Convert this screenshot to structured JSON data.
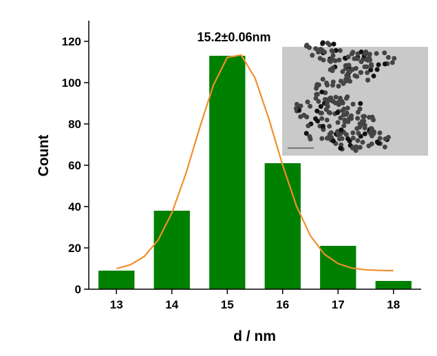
{
  "chart_data": {
    "type": "bar",
    "annotation": "15.2±0.06nm",
    "xlabel": "d / nm",
    "ylabel": "Count",
    "bars": {
      "x": [
        13,
        14,
        15,
        16,
        17,
        18
      ],
      "values": [
        9,
        38,
        113,
        61,
        21,
        4
      ],
      "color": "#008000"
    },
    "fit": {
      "type": "line",
      "color": "#f28e2b",
      "x": [
        13,
        13.25,
        13.5,
        13.75,
        14,
        14.25,
        14.5,
        14.75,
        15,
        15.25,
        15.5,
        15.75,
        16,
        16.25,
        16.5,
        16.75,
        17,
        17.25,
        17.5,
        17.75,
        18
      ],
      "values": [
        10.0,
        11.8,
        15.8,
        23.7,
        36.9,
        55.7,
        78.0,
        98.8,
        112.2,
        113.4,
        102.3,
        82.5,
        60.0,
        40.2,
        25.9,
        17.0,
        12.4,
        10.2,
        9.4,
        9.1,
        9.0
      ]
    },
    "xlim": [
      12.5,
      18.5
    ],
    "ylim": [
      0,
      130
    ],
    "xticks": [
      13,
      14,
      15,
      16,
      17,
      18
    ],
    "yticks": [
      0,
      20,
      40,
      60,
      80,
      100,
      120
    ]
  }
}
